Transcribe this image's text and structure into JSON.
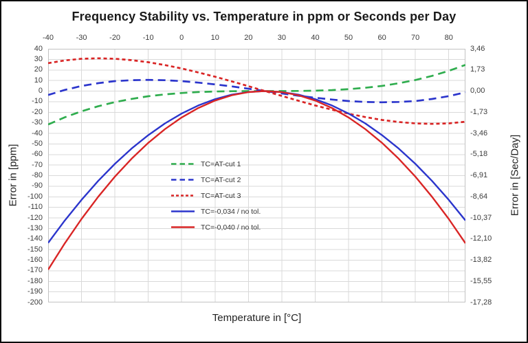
{
  "title": "Frequency Stability vs. Temperature in ppm or Seconds per Day",
  "axes": {
    "x": {
      "label": "Temperature in [°C]",
      "min": -40,
      "max": 85,
      "ticks": [
        -40,
        -30,
        -20,
        -10,
        0,
        10,
        20,
        30,
        40,
        50,
        60,
        70,
        80
      ]
    },
    "y_left": {
      "label": "Error in [ppm]",
      "min": -200,
      "max": 40,
      "ticks": [
        40,
        30,
        20,
        10,
        0,
        -10,
        -20,
        -30,
        -40,
        -50,
        -60,
        -70,
        -80,
        -90,
        -100,
        -110,
        -120,
        -130,
        -140,
        -150,
        -160,
        -170,
        -180,
        -190,
        -200
      ]
    },
    "y_right": {
      "label": "Error in [Sec/Day]",
      "tick_labels": [
        "3,46",
        "1,73",
        "0,00",
        "-1,73",
        "-3,46",
        "-5,18",
        "-6,91",
        "-8,64",
        "-10,37",
        "-12,10",
        "-13,82",
        "-15,55",
        "-17,28"
      ],
      "tick_ppm_positions": [
        40,
        20,
        0,
        -20,
        -40,
        -60,
        -80,
        -100,
        -120,
        -140,
        -160,
        -180,
        -200
      ]
    }
  },
  "chart_data": {
    "type": "line",
    "title": "Frequency Stability vs. Temperature in ppm or Seconds per Day",
    "xlabel": "Temperature in [°C]",
    "ylabel_left": "Error in [ppm]",
    "ylabel_right": "Error in [Sec/Day]",
    "xlim": [
      -40,
      85
    ],
    "ylim": [
      -200,
      40
    ],
    "grid": true,
    "legend_position": "inside-center-left",
    "x": [
      -40,
      -35,
      -30,
      -25,
      -20,
      -15,
      -10,
      -5,
      0,
      5,
      10,
      15,
      20,
      25,
      30,
      35,
      40,
      45,
      50,
      55,
      60,
      65,
      70,
      75,
      80,
      85
    ],
    "series": [
      {
        "name": "TC=AT-cut 1",
        "color": "#2fad4e",
        "style": "long-dash",
        "values": [
          -31.6,
          -24.8,
          -19.1,
          -14.4,
          -10.5,
          -7.4,
          -4.9,
          -3.1,
          -1.8,
          -0.9,
          -0.4,
          -0.1,
          0,
          0,
          0,
          0.1,
          0.4,
          0.9,
          1.8,
          3.1,
          4.9,
          7.4,
          10.5,
          14.4,
          19.1,
          24.8
        ]
      },
      {
        "name": "TC=AT-cut 2",
        "color": "#2b35cc",
        "style": "long-dash",
        "values": [
          -3.7,
          1.1,
          4.8,
          7.5,
          9.4,
          10.3,
          10.6,
          10.3,
          9.4,
          8.0,
          6.3,
          4.4,
          2.2,
          0,
          -2.2,
          -4.4,
          -6.3,
          -8.0,
          -9.4,
          -10.3,
          -10.6,
          -10.3,
          -9.4,
          -7.5,
          -4.8,
          -1.1
        ]
      },
      {
        "name": "TC=AT-cut 3",
        "color": "#d92525",
        "style": "short-dash",
        "values": [
          26.4,
          29.0,
          30.6,
          31.0,
          30.6,
          29.3,
          27.3,
          24.6,
          21.4,
          17.6,
          13.6,
          9.2,
          4.6,
          0,
          -4.6,
          -9.2,
          -13.6,
          -17.6,
          -21.4,
          -24.6,
          -27.3,
          -29.3,
          -30.6,
          -31.0,
          -30.6,
          -29.0
        ]
      },
      {
        "name": "TC=-0,034 / no tol.",
        "color": "#2b35cc",
        "style": "solid",
        "values": [
          -143.7,
          -122.4,
          -102.9,
          -85.0,
          -68.9,
          -54.4,
          -41.7,
          -30.6,
          -21.3,
          -13.6,
          -7.7,
          -3.4,
          -0.9,
          0,
          -0.9,
          -3.4,
          -7.7,
          -13.6,
          -21.3,
          -30.6,
          -41.7,
          -54.4,
          -68.9,
          -85.0,
          -102.9,
          -122.4
        ]
      },
      {
        "name": "TC=-0,040 / no tol.",
        "color": "#d92525",
        "style": "solid",
        "values": [
          -169.0,
          -144.0,
          -121.0,
          -100.0,
          -81.0,
          -64.0,
          -49.0,
          -36.0,
          -25.0,
          -16.0,
          -9.0,
          -4.0,
          -1.0,
          0,
          -1.0,
          -4.0,
          -9.0,
          -16.0,
          -25.0,
          -36.0,
          -49.0,
          -64.0,
          -81.0,
          -100.0,
          -121.0,
          -144.0
        ]
      }
    ]
  },
  "colors": {
    "grid": "#d9d9d9",
    "plot_border": "#c2c2c2",
    "tick_text": "#3c3c3c",
    "title_text": "#1a1a1a",
    "background": "#ffffff",
    "frame": "#0d0d0d"
  }
}
